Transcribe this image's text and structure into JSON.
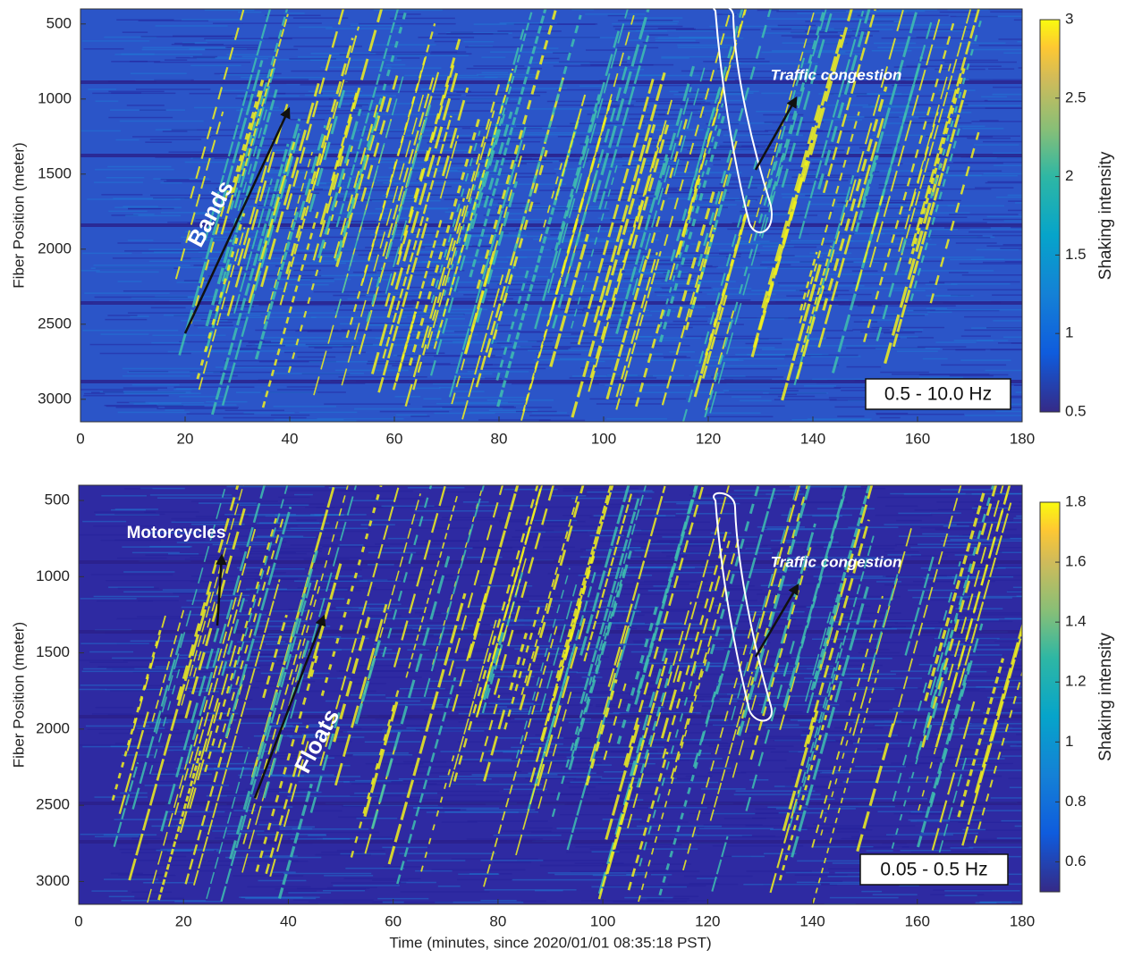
{
  "chart_data": [
    {
      "type": "heatmap",
      "xlim": [
        0,
        180
      ],
      "xticks": [
        0,
        20,
        40,
        60,
        80,
        100,
        120,
        140,
        160,
        180
      ],
      "ylim": [
        400,
        3150
      ],
      "y_inverted": true,
      "yticks": [
        500,
        1000,
        1500,
        2000,
        2500,
        3000
      ],
      "ylabel": "Fiber Position (meter)",
      "colorbar_label": "Shaking intensity",
      "clim": [
        0.5,
        3
      ],
      "cticks": [
        0.5,
        1,
        1.5,
        2,
        2.5,
        3
      ],
      "annotations": [
        "Traffic congestion",
        "Bands"
      ],
      "band_label": "0.5 - 10.0 Hz"
    },
    {
      "type": "heatmap",
      "xlim": [
        0,
        180
      ],
      "xticks": [
        0,
        20,
        40,
        60,
        80,
        100,
        120,
        140,
        160,
        180
      ],
      "ylim": [
        400,
        3150
      ],
      "y_inverted": true,
      "yticks": [
        500,
        1000,
        1500,
        2000,
        2500,
        3000
      ],
      "xlabel": "Time (minutes, since 2020/01/01 08:35:18 PST)",
      "ylabel": "Fiber Position (meter)",
      "colorbar_label": "Shaking intensity",
      "clim": [
        0.5,
        1.8
      ],
      "cticks": [
        0.6,
        0.8,
        1,
        1.2,
        1.4,
        1.6,
        1.8
      ],
      "annotations": [
        "Motorcycles",
        "Traffic congestion",
        "Floats"
      ],
      "band_label": "0.05 - 0.5 Hz"
    }
  ]
}
